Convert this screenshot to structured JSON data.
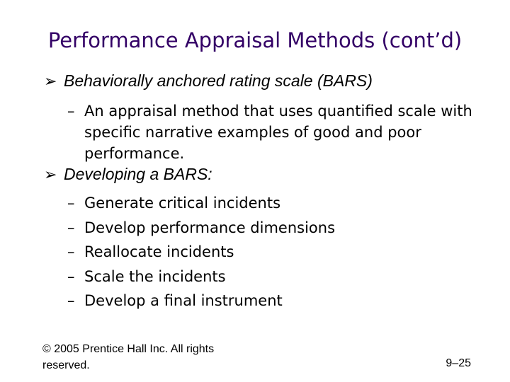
{
  "slide": {
    "title": "Performance Appraisal Methods (cont’d)",
    "bullets": [
      {
        "icon": "arrow-bullet-icon",
        "text": "Behaviorally anchored rating scale (BARS)",
        "sub": [
          "An appraisal method that uses quantified scale with specific narrative examples of good and poor performance."
        ]
      },
      {
        "icon": "arrow-bullet-icon",
        "text": "Developing a BARS:",
        "sub": [
          "Generate critical incidents",
          "Develop performance dimensions",
          "Reallocate incidents",
          "Scale the incidents",
          "Develop a final instrument"
        ]
      }
    ],
    "dash": "–",
    "footer": "© 2005 Prentice Hall Inc. All rights reserved.",
    "page_number": "9–25",
    "colors": {
      "title": "#330066",
      "text": "#000000",
      "background": "#ffffff"
    }
  }
}
